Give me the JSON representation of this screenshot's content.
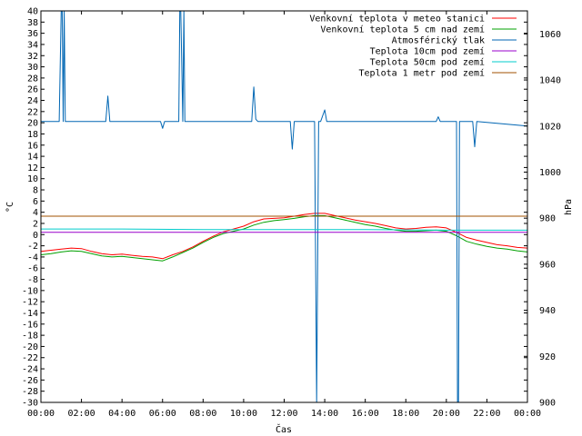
{
  "chart_data": {
    "type": "line",
    "title": "",
    "xlabel": "Čas",
    "ylabel": "°C",
    "y2label": "hPa",
    "x_ticks": [
      "00:00",
      "02:00",
      "04:00",
      "06:00",
      "08:00",
      "10:00",
      "12:00",
      "14:00",
      "16:00",
      "18:00",
      "20:00",
      "22:00",
      "00:00"
    ],
    "x_range_hours": [
      0,
      24
    ],
    "ylim": [
      -30,
      40
    ],
    "y_ticks": [
      40,
      38,
      36,
      34,
      32,
      30,
      28,
      26,
      24,
      22,
      20,
      18,
      16,
      14,
      12,
      10,
      8,
      6,
      4,
      2,
      0,
      -2,
      -4,
      -6,
      -8,
      -10,
      -12,
      -14,
      -16,
      -18,
      -20,
      -22,
      -24,
      -26,
      -28,
      -30
    ],
    "y2lim": [
      900,
      1070
    ],
    "y2_ticks": [
      1060,
      1040,
      1020,
      1000,
      980,
      960,
      940,
      920,
      900
    ],
    "grid": false,
    "legend_position": "top-right",
    "series": [
      {
        "name": "Venkovní teplota v meteo stanici",
        "axis": "left",
        "color": "#ff0000",
        "x": [
          0,
          0.5,
          1,
          1.5,
          2,
          2.5,
          3,
          3.5,
          4,
          4.5,
          5,
          5.5,
          6,
          6.5,
          7,
          7.5,
          8,
          8.5,
          9,
          9.5,
          10,
          10.5,
          11,
          11.5,
          12,
          12.5,
          13,
          13.5,
          14,
          14.5,
          15,
          15.5,
          16,
          16.5,
          17,
          17.5,
          18,
          18.5,
          19,
          19.5,
          20,
          20.5,
          21,
          21.5,
          22,
          22.5,
          23,
          23.5,
          24
        ],
        "y": [
          -3.0,
          -2.8,
          -2.6,
          -2.4,
          -2.5,
          -3.0,
          -3.4,
          -3.6,
          -3.5,
          -3.7,
          -3.9,
          -4.0,
          -4.3,
          -3.6,
          -3.0,
          -2.2,
          -1.2,
          -0.3,
          0.5,
          1.0,
          1.5,
          2.3,
          2.8,
          2.9,
          3.0,
          3.3,
          3.6,
          3.8,
          3.8,
          3.4,
          3.0,
          2.6,
          2.3,
          2.0,
          1.6,
          1.2,
          1.0,
          1.1,
          1.3,
          1.4,
          1.2,
          0.4,
          -0.5,
          -1.0,
          -1.4,
          -1.8,
          -2.0,
          -2.3,
          -2.4
        ]
      },
      {
        "name": "Venkovní teplota 5 cm nad zemí",
        "axis": "left",
        "color": "#00a000",
        "x": [
          0,
          0.5,
          1,
          1.5,
          2,
          2.5,
          3,
          3.5,
          4,
          4.5,
          5,
          5.5,
          6,
          6.5,
          7,
          7.5,
          8,
          8.5,
          9,
          9.5,
          10,
          10.5,
          11,
          11.5,
          12,
          12.5,
          13,
          13.5,
          14,
          14.5,
          15,
          15.5,
          16,
          16.5,
          17,
          17.5,
          18,
          18.5,
          19,
          19.5,
          20,
          20.5,
          21,
          21.5,
          22,
          22.5,
          23,
          23.5,
          24
        ],
        "y": [
          -3.6,
          -3.4,
          -3.1,
          -2.9,
          -3.0,
          -3.4,
          -3.8,
          -4.0,
          -3.9,
          -4.1,
          -4.3,
          -4.5,
          -4.7,
          -4.0,
          -3.2,
          -2.4,
          -1.4,
          -0.5,
          0.2,
          0.6,
          1.0,
          1.7,
          2.2,
          2.5,
          2.7,
          2.9,
          3.2,
          3.4,
          3.4,
          3.0,
          2.6,
          2.2,
          1.8,
          1.5,
          1.1,
          0.8,
          0.6,
          0.6,
          0.7,
          0.8,
          0.6,
          -0.2,
          -1.2,
          -1.7,
          -2.1,
          -2.4,
          -2.6,
          -2.9,
          -3.1
        ]
      },
      {
        "name": "Atmosférický tlak",
        "axis": "right",
        "color": "#0066b3",
        "x": [
          0,
          0.9,
          1.0,
          1.05,
          1.1,
          1.15,
          1.2,
          3.2,
          3.3,
          3.4,
          3.5,
          5.9,
          6.0,
          6.1,
          6.8,
          6.85,
          6.9,
          7.0,
          7.05,
          7.1,
          10.4,
          10.5,
          10.6,
          10.7,
          12.3,
          12.4,
          12.5,
          13.5,
          13.55,
          13.6,
          13.65,
          13.7,
          13.8,
          14.0,
          14.1,
          14.2,
          19.5,
          19.6,
          19.7,
          20.5,
          20.55,
          20.6,
          20.65,
          20.7,
          21.3,
          21.4,
          21.5,
          24
        ],
        "y": [
          1022,
          1022,
          1070,
          1070,
          1022,
          1070,
          1022,
          1022,
          1033,
          1022,
          1022,
          1022,
          1019,
          1022,
          1022,
          1070,
          1070,
          1022,
          1070,
          1022,
          1022,
          1037,
          1023,
          1022,
          1022,
          1010,
          1022,
          1022,
          960,
          900,
          960,
          1022,
          1022,
          1027,
          1022,
          1022,
          1022,
          1024,
          1022,
          1022,
          900,
          900,
          1022,
          1022,
          1022,
          1011,
          1022,
          1020
        ]
      },
      {
        "name": "Teplota 10cm pod zemí",
        "axis": "left",
        "color": "#9900cc",
        "x": [
          0,
          24
        ],
        "y": [
          0.4,
          0.4
        ]
      },
      {
        "name": "Teplota 50cm pod zemí",
        "axis": "left",
        "color": "#00cccc",
        "x": [
          0,
          4,
          8,
          12,
          16,
          20,
          24
        ],
        "y": [
          1.0,
          1.0,
          0.9,
          0.9,
          0.9,
          0.8,
          0.8
        ]
      },
      {
        "name": "Teplota 1 metr pod zemí",
        "axis": "left",
        "color": "#a05000",
        "x": [
          0,
          24
        ],
        "y": [
          3.3,
          3.3
        ]
      }
    ]
  }
}
